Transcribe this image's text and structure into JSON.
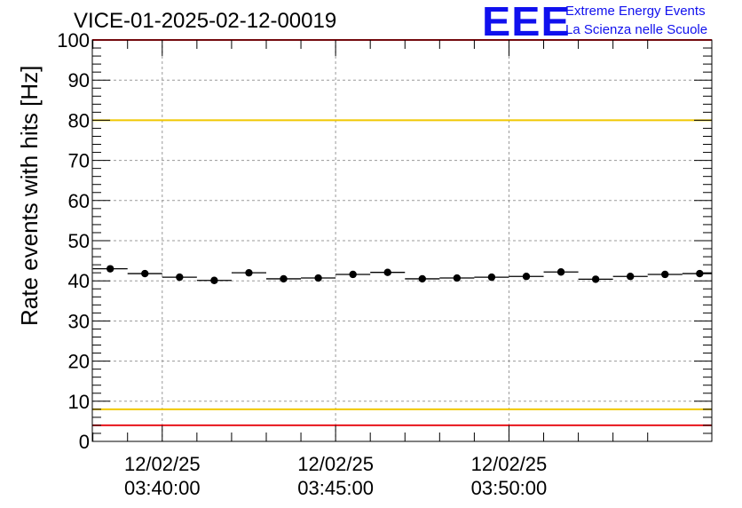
{
  "header": {
    "title": "VICE-01-2025-02-12-00019",
    "logo_text": "EEE",
    "logo_line1": "Extreme Energy Events",
    "logo_line2": "La Scienza nelle Scuole"
  },
  "colors": {
    "limit_red": "#e8141b",
    "limit_yellow": "#f0c800",
    "logo_blue": "#1010ee",
    "grid": "#9a9a9a"
  },
  "chart_data": {
    "type": "scatter",
    "ylabel": "Rate events with hits [Hz]",
    "xlabel": "",
    "ylim": [
      0,
      100
    ],
    "yticks": [
      0,
      10,
      20,
      30,
      40,
      50,
      60,
      70,
      80,
      90,
      100
    ],
    "x_axis": "time",
    "xlim": [
      "2025-02-12 03:37:59",
      "2025-02-12 03:55:51"
    ],
    "xticks": [
      {
        "time": "2025-02-12 03:40:00",
        "label_date": "12/02/25",
        "label_time": "03:40:00"
      },
      {
        "time": "2025-02-12 03:45:00",
        "label_date": "12/02/25",
        "label_time": "03:45:00"
      },
      {
        "time": "2025-02-12 03:50:00",
        "label_date": "12/02/25",
        "label_time": "03:50:00"
      }
    ],
    "grid": true,
    "bin_width_seconds": 60,
    "x": [
      "03:38:30",
      "03:39:30",
      "03:40:30",
      "03:41:30",
      "03:42:30",
      "03:43:30",
      "03:44:30",
      "03:45:30",
      "03:46:30",
      "03:47:30",
      "03:48:30",
      "03:49:30",
      "03:50:30",
      "03:51:30",
      "03:52:30",
      "03:53:30",
      "03:54:30",
      "03:55:30"
    ],
    "values": [
      43.0,
      41.8,
      40.9,
      40.1,
      42.0,
      40.5,
      40.7,
      41.6,
      42.1,
      40.5,
      40.7,
      40.9,
      41.1,
      42.2,
      40.4,
      41.1,
      41.6,
      41.8
    ],
    "reference_lines": [
      {
        "y": 100,
        "color": "#e8141b"
      },
      {
        "y": 80,
        "color": "#f0c800"
      },
      {
        "y": 8,
        "color": "#f0c800"
      },
      {
        "y": 4,
        "color": "#e8141b"
      }
    ]
  }
}
